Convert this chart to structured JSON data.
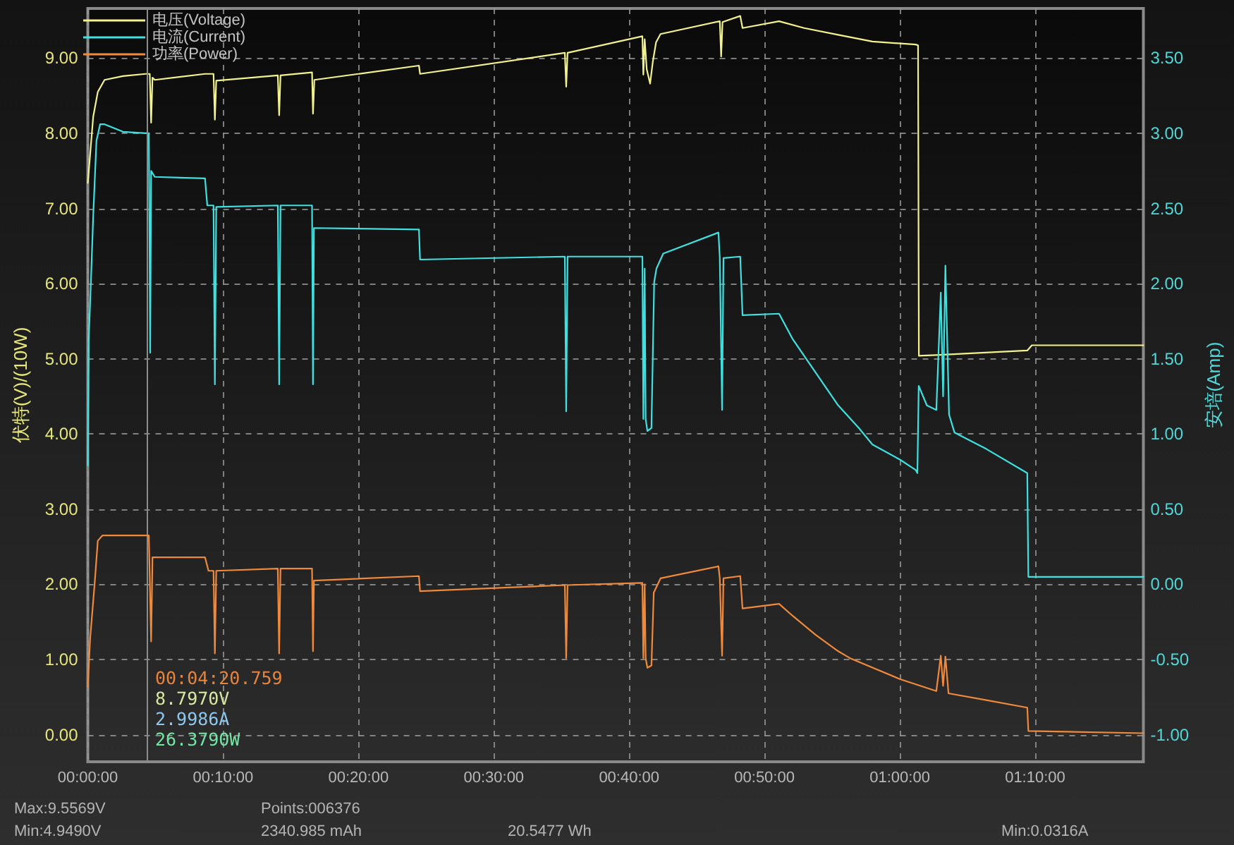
{
  "chart_data": {
    "type": "line",
    "ylabel": "伏特(V)/(10W)",
    "y2label": "安培(Amp)",
    "xlim": [
      0,
      78
    ],
    "xticks": [
      {
        "value": 0,
        "label": "00:00:00"
      },
      {
        "value": 10,
        "label": "00:10:00"
      },
      {
        "value": 20,
        "label": "00:20:00"
      },
      {
        "value": 30,
        "label": "00:30:00"
      },
      {
        "value": 40,
        "label": "00:40:00"
      },
      {
        "value": 50,
        "label": "00:50:00"
      },
      {
        "value": 60,
        "label": "01:00:00"
      },
      {
        "value": 70,
        "label": "01:10:00"
      }
    ],
    "ylim": [
      -0.36,
      9.66
    ],
    "yticks": [
      {
        "value": 0,
        "label": "0.00"
      },
      {
        "value": 1,
        "label": "1.00"
      },
      {
        "value": 2,
        "label": "2.00"
      },
      {
        "value": 3,
        "label": "3.00"
      },
      {
        "value": 4,
        "label": "4.00"
      },
      {
        "value": 5,
        "label": "5.00"
      },
      {
        "value": 6,
        "label": "6.00"
      },
      {
        "value": 7,
        "label": "7.00"
      },
      {
        "value": 8,
        "label": "8.00"
      },
      {
        "value": 9,
        "label": "9.00"
      }
    ],
    "y2lim": [
      -1.18,
      3.83
    ],
    "y2ticks": [
      {
        "value": -1,
        "label": "-1.00"
      },
      {
        "value": -0.5,
        "label": "-0.50"
      },
      {
        "value": 0,
        "label": "0.00"
      },
      {
        "value": 0.5,
        "label": "0.50"
      },
      {
        "value": 1,
        "label": "1.00"
      },
      {
        "value": 1.5,
        "label": "1.50"
      },
      {
        "value": 2,
        "label": "2.00"
      },
      {
        "value": 2.5,
        "label": "2.50"
      },
      {
        "value": 3,
        "label": "3.00"
      },
      {
        "value": 3.5,
        "label": "3.50"
      }
    ],
    "grid": true,
    "legend": "top left",
    "marker": "none",
    "line_style": "solid",
    "ref_lines": [
      {
        "axis": "x",
        "value": 4.346,
        "color": "#8c8c8c"
      }
    ],
    "annotations": [
      "00:04:20.759",
      "8.7970V",
      "2.9986A",
      "26.3790W",
      "Max:9.5569V",
      "Min:4.9490V",
      "Points:006376",
      "2340.985 mAh",
      "20.5477 Wh",
      "Min:0.0316A"
    ],
    "series": [
      {
        "name": "电压(Voltage)",
        "color": "#f2f28c",
        "x": [
          0,
          0.4,
          0.74,
          1.24,
          2.6,
          4.27,
          4.58,
          4.68,
          4.78,
          4.95,
          8.66,
          9.29,
          9.39,
          9.49,
          14.04,
          14.14,
          14.24,
          16.57,
          16.64,
          16.74,
          24.47,
          24.55,
          35.25,
          35.35,
          35.45,
          40.98,
          41.05,
          41.15,
          41.3,
          41.55,
          41.75,
          41.99,
          42.32,
          46.7,
          46.8,
          46.9,
          48.21,
          48.38,
          51.08,
          52.93,
          55.45,
          57.98,
          61.18,
          61.35,
          61.41,
          62.7,
          69.42,
          69.76,
          78.0
        ],
        "values": [
          7.34,
          8.22,
          8.55,
          8.71,
          8.76,
          8.79,
          8.79,
          8.14,
          8.74,
          8.71,
          8.79,
          8.79,
          8.18,
          8.7,
          8.77,
          8.24,
          8.77,
          8.81,
          8.26,
          8.71,
          8.9,
          8.79,
          9.07,
          8.62,
          9.07,
          9.29,
          8.78,
          9.25,
          8.85,
          8.66,
          8.95,
          9.21,
          9.32,
          9.49,
          9.02,
          9.48,
          9.56,
          9.4,
          9.49,
          9.4,
          9.31,
          9.22,
          9.18,
          9.17,
          5.04,
          5.05,
          5.11,
          5.18,
          5.18
        ]
      },
      {
        "name": "电流(Current)",
        "color": "#3fe0e0",
        "axis": "y2",
        "x": [
          0,
          0.07,
          0.23,
          0.4,
          0.64,
          0.91,
          1.24,
          2.6,
          4.27,
          4.51,
          4.61,
          4.68,
          4.95,
          8.66,
          8.83,
          9.29,
          9.39,
          9.49,
          14.04,
          14.14,
          14.24,
          16.57,
          16.64,
          16.71,
          24.47,
          24.55,
          35.25,
          35.35,
          35.45,
          40.98,
          41.05,
          41.15,
          41.22,
          41.35,
          41.65,
          41.85,
          42.02,
          42.52,
          46.6,
          46.7,
          46.87,
          46.97,
          48.21,
          48.38,
          51.08,
          52.09,
          53.77,
          55.45,
          56.97,
          57.98,
          60.0,
          61.18,
          61.3,
          61.4,
          62.0,
          62.7,
          63.03,
          63.2,
          63.37,
          63.64,
          64.04,
          66.4,
          69.42,
          69.5,
          78.0
        ],
        "values": [
          0.79,
          1.63,
          2.01,
          2.45,
          2.95,
          3.06,
          3.06,
          3.01,
          3.0,
          3.0,
          1.54,
          2.75,
          2.71,
          2.7,
          2.52,
          2.52,
          1.33,
          2.51,
          2.52,
          1.33,
          2.52,
          2.52,
          1.33,
          2.37,
          2.36,
          2.16,
          2.18,
          1.15,
          2.18,
          2.18,
          1.1,
          2.1,
          1.1,
          1.02,
          1.04,
          2.01,
          2.1,
          2.2,
          2.34,
          2.17,
          1.16,
          2.17,
          2.18,
          1.79,
          1.8,
          1.63,
          1.41,
          1.19,
          1.04,
          0.93,
          0.83,
          0.76,
          0.74,
          1.32,
          1.19,
          1.16,
          1.94,
          1.25,
          2.12,
          1.13,
          1.01,
          0.9,
          0.74,
          0.05,
          0.05
        ]
      },
      {
        "name": "功率(Power)",
        "color": "#f08a3a",
        "x": [
          0,
          0.17,
          0.51,
          0.74,
          1.08,
          4.27,
          4.51,
          4.68,
          4.78,
          8.66,
          8.92,
          9.29,
          9.39,
          9.49,
          14.04,
          14.14,
          14.24,
          16.57,
          16.64,
          16.71,
          24.47,
          24.55,
          35.25,
          35.35,
          35.45,
          40.98,
          41.05,
          41.15,
          41.22,
          41.35,
          41.65,
          41.82,
          42.32,
          46.6,
          46.7,
          46.87,
          46.97,
          48.21,
          48.38,
          51.08,
          52.09,
          53.77,
          55.45,
          56.3,
          60.0,
          62.7,
          63.03,
          63.2,
          63.37,
          63.6,
          66.4,
          69.42,
          69.5,
          78.0
        ],
        "values": [
          0.64,
          1.27,
          2.02,
          2.58,
          2.65,
          2.65,
          2.65,
          1.24,
          2.36,
          2.36,
          2.18,
          2.18,
          1.08,
          2.18,
          2.21,
          1.08,
          2.21,
          2.21,
          1.11,
          2.05,
          2.11,
          1.91,
          1.99,
          1.02,
          1.99,
          2.02,
          1.02,
          2.0,
          1.02,
          0.89,
          0.92,
          1.89,
          2.08,
          2.24,
          2.08,
          1.05,
          2.08,
          2.11,
          1.68,
          1.74,
          1.58,
          1.33,
          1.11,
          1.02,
          0.74,
          0.58,
          1.05,
          0.65,
          1.04,
          0.55,
          0.46,
          0.36,
          0.05,
          0.02
        ]
      }
    ]
  }
}
